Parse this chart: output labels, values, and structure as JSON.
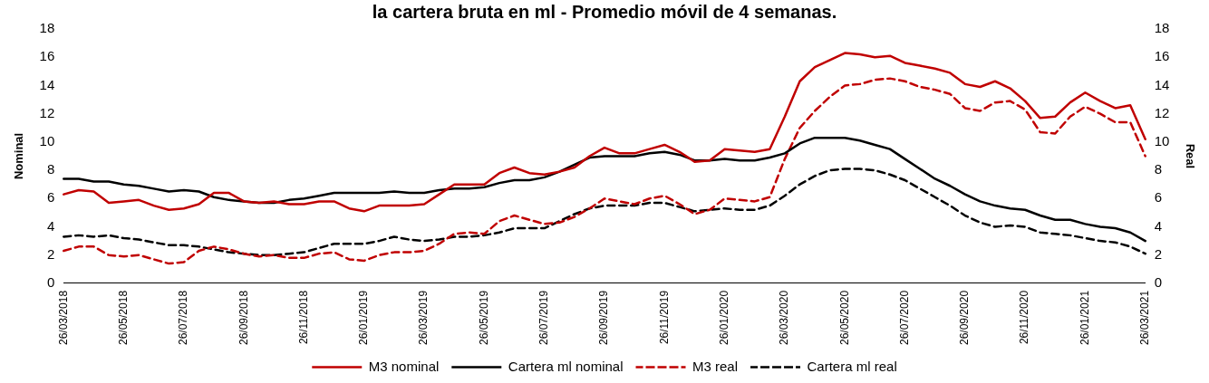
{
  "chart_data": {
    "type": "line",
    "title": "la cartera bruta en ml - Promedio móvil de 4 semanas.",
    "ylabel": "Nominal",
    "y2label": "Real",
    "categories": [
      "26/03/2018",
      null,
      null,
      null,
      "26/05/2018",
      null,
      null,
      null,
      "26/07/2018",
      null,
      null,
      null,
      "26/09/2018",
      null,
      null,
      null,
      "26/11/2018",
      null,
      null,
      null,
      "26/01/2019",
      null,
      null,
      null,
      "26/03/2019",
      null,
      null,
      null,
      "26/05/2019",
      null,
      null,
      null,
      "26/07/2019",
      null,
      null,
      null,
      "26/09/2019",
      null,
      null,
      null,
      "26/11/2019",
      null,
      null,
      null,
      "26/01/2020",
      null,
      null,
      null,
      "26/03/2020",
      null,
      null,
      null,
      "26/05/2020",
      null,
      null,
      null,
      "26/07/2020",
      null,
      null,
      null,
      "26/09/2020",
      null,
      null,
      null,
      "26/11/2020",
      null,
      null,
      null,
      "26/01/2021",
      null,
      null,
      null,
      "26/03/2021"
    ],
    "series": [
      {
        "name": "M3 nominal",
        "color": "#c00000",
        "line_style": "solid",
        "values": [
          6.3,
          6.6,
          6.5,
          5.7,
          5.8,
          5.9,
          5.5,
          5.2,
          5.3,
          5.6,
          6.4,
          6.4,
          5.8,
          5.7,
          5.8,
          5.6,
          5.6,
          5.8,
          5.8,
          5.3,
          5.1,
          5.5,
          5.5,
          5.5,
          5.6,
          6.3,
          7.0,
          7.0,
          7.0,
          7.8,
          8.2,
          7.8,
          7.7,
          7.9,
          8.2,
          9.0,
          9.6,
          9.2,
          9.2,
          9.5,
          9.8,
          9.3,
          8.6,
          8.7,
          9.5,
          9.4,
          9.3,
          9.5,
          11.8,
          14.3,
          15.3,
          15.8,
          16.3,
          16.2,
          16.0,
          16.1,
          15.6,
          15.4,
          15.2,
          14.9,
          14.1,
          13.9,
          14.3,
          13.8,
          12.9,
          11.7,
          11.8,
          12.8,
          13.5,
          12.9,
          12.4,
          12.6,
          10.2
        ]
      },
      {
        "name": "Cartera ml nominal",
        "color": "#000000",
        "line_style": "solid",
        "values": [
          7.4,
          7.4,
          7.2,
          7.2,
          7.0,
          6.9,
          6.7,
          6.5,
          6.6,
          6.5,
          6.1,
          5.9,
          5.8,
          5.7,
          5.7,
          5.9,
          6.0,
          6.2,
          6.4,
          6.4,
          6.4,
          6.4,
          6.5,
          6.4,
          6.4,
          6.6,
          6.7,
          6.7,
          6.8,
          7.1,
          7.3,
          7.3,
          7.5,
          7.9,
          8.4,
          8.9,
          9.0,
          9.0,
          9.0,
          9.2,
          9.3,
          9.1,
          8.7,
          8.7,
          8.8,
          8.7,
          8.7,
          8.9,
          9.2,
          9.9,
          10.3,
          10.3,
          10.3,
          10.1,
          9.8,
          9.5,
          8.8,
          8.1,
          7.4,
          6.9,
          6.3,
          5.8,
          5.5,
          5.3,
          5.2,
          4.8,
          4.5,
          4.5,
          4.2,
          4.0,
          3.9,
          3.6,
          3.0
        ]
      },
      {
        "name": "M3 real",
        "color": "#c00000",
        "line_style": "dashed",
        "values": [
          2.3,
          2.6,
          2.6,
          2.0,
          1.9,
          2.0,
          1.7,
          1.4,
          1.5,
          2.3,
          2.6,
          2.4,
          2.1,
          1.9,
          2.0,
          1.8,
          1.8,
          2.1,
          2.2,
          1.7,
          1.6,
          2.0,
          2.2,
          2.2,
          2.3,
          2.8,
          3.5,
          3.6,
          3.5,
          4.4,
          4.8,
          4.5,
          4.2,
          4.3,
          4.7,
          5.3,
          6.0,
          5.8,
          5.6,
          6.0,
          6.2,
          5.6,
          4.9,
          5.2,
          6.0,
          5.9,
          5.8,
          6.1,
          8.8,
          11.0,
          12.2,
          13.2,
          14.0,
          14.1,
          14.4,
          14.5,
          14.3,
          13.9,
          13.7,
          13.4,
          12.4,
          12.2,
          12.8,
          12.9,
          12.3,
          10.7,
          10.6,
          11.8,
          12.5,
          12.0,
          11.4,
          11.4,
          9.0
        ]
      },
      {
        "name": "Cartera ml real",
        "color": "#000000",
        "line_style": "dashed",
        "values": [
          3.3,
          3.4,
          3.3,
          3.4,
          3.2,
          3.1,
          2.9,
          2.7,
          2.7,
          2.6,
          2.4,
          2.2,
          2.1,
          2.0,
          2.0,
          2.1,
          2.2,
          2.5,
          2.8,
          2.8,
          2.8,
          3.0,
          3.3,
          3.1,
          3.0,
          3.1,
          3.3,
          3.3,
          3.4,
          3.6,
          3.9,
          3.9,
          3.9,
          4.4,
          4.9,
          5.3,
          5.5,
          5.5,
          5.5,
          5.7,
          5.7,
          5.4,
          5.1,
          5.2,
          5.3,
          5.2,
          5.2,
          5.5,
          6.2,
          7.0,
          7.6,
          8.0,
          8.1,
          8.1,
          8.0,
          7.7,
          7.3,
          6.7,
          6.1,
          5.5,
          4.8,
          4.3,
          4.0,
          4.1,
          4.0,
          3.6,
          3.5,
          3.4,
          3.2,
          3.0,
          2.9,
          2.6,
          2.1
        ]
      }
    ],
    "ylim": [
      0,
      18
    ],
    "yticks": [
      0,
      2,
      4,
      6,
      8,
      10,
      12,
      14,
      16,
      18
    ],
    "y2lim": [
      0,
      18
    ],
    "y2ticks": [
      0,
      2,
      4,
      6,
      8,
      10,
      12,
      14,
      16,
      18
    ],
    "grid": false,
    "legend": "bottom",
    "marker": "none"
  }
}
